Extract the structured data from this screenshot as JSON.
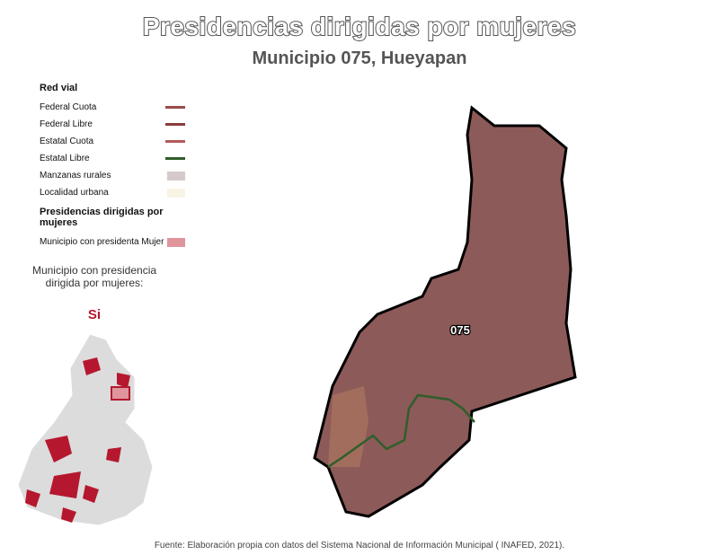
{
  "header": {
    "title": "Presidencias dirigidas por mujeres",
    "subtitle": "Municipio 075, Hueyapan"
  },
  "legend": {
    "road_title": "Red vial",
    "roads": [
      {
        "label": "Federal Cuota",
        "color": "#9b4a4a"
      },
      {
        "label": "Federal Libre",
        "color": "#8a3c3c"
      },
      {
        "label": "Estatal Cuota",
        "color": "#b55a5a"
      },
      {
        "label": "Estatal Libre",
        "color": "#2f5e2a"
      }
    ],
    "areas": [
      {
        "label": "Manzanas rurales",
        "color": "#d6c9c9"
      },
      {
        "label": "Localidad urbana",
        "color": "#f8f4e4"
      }
    ],
    "women_title": "Presidencias dirigidas por mujeres",
    "women_item": {
      "label": "Municipio con presidenta Mujer",
      "color": "#e0949c"
    }
  },
  "inset": {
    "question": "Municipio con presidencia dirigida por mujeres:",
    "answer": "Si"
  },
  "map": {
    "municipality_label": "075"
  },
  "footer": {
    "source": "Fuente: Elaboración propia con datos del Sistema Nacional de Información Municipal ( INAFED, 2021)."
  }
}
